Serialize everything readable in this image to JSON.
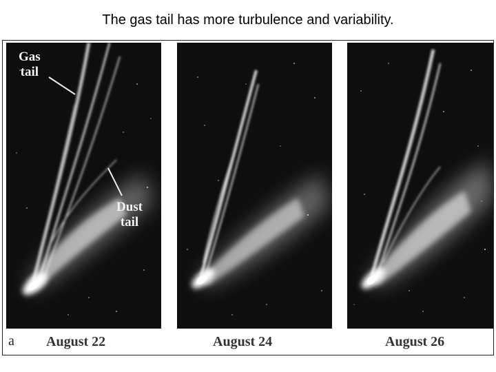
{
  "slide": {
    "title": "The gas tail has more turbulence and variability."
  },
  "figure": {
    "panel_letter": "a",
    "annotations": {
      "gas_tail": [
        "Gas",
        "tail"
      ],
      "dust_tail": [
        "Dust",
        "tail"
      ]
    },
    "captions": [
      "August 22",
      "August 24",
      "August 26"
    ]
  }
}
